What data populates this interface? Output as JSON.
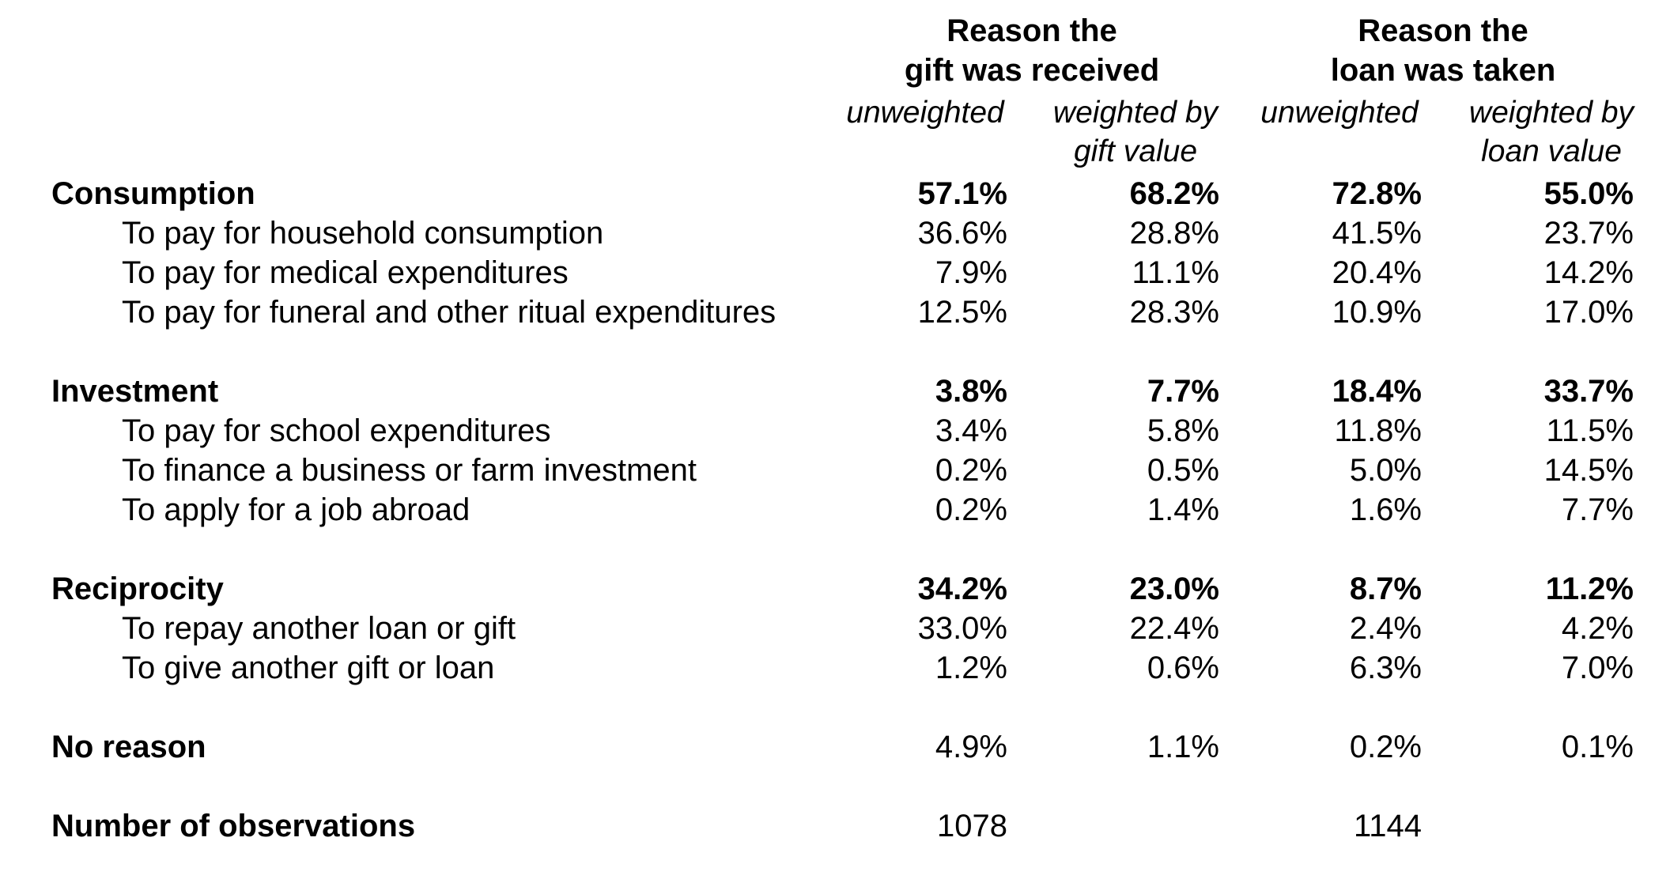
{
  "header": {
    "gift_group": [
      "Reason the",
      "gift was received"
    ],
    "loan_group": [
      "Reason the",
      "loan was taken"
    ],
    "sub_unweighted": "unweighted",
    "sub_weighted_gift": [
      "weighted by",
      "gift value"
    ],
    "sub_weighted_loan": [
      "weighted by",
      "loan value"
    ]
  },
  "rows": [
    {
      "label": "Consumption",
      "values": [
        "57.1%",
        "68.2%",
        "72.8%",
        "55.0%"
      ],
      "bold": true
    },
    {
      "label": "To pay for household consumption",
      "values": [
        "36.6%",
        "28.8%",
        "41.5%",
        "23.7%"
      ]
    },
    {
      "label": "To pay for medical expenditures",
      "values": [
        "7.9%",
        "11.1%",
        "20.4%",
        "14.2%"
      ]
    },
    {
      "label": "To pay for funeral and other ritual expenditures",
      "values": [
        "12.5%",
        "28.3%",
        "10.9%",
        "17.0%"
      ]
    },
    {
      "label": "Investment",
      "values": [
        "3.8%",
        "7.7%",
        "18.4%",
        "33.7%"
      ],
      "bold": true
    },
    {
      "label": "To pay for school expenditures",
      "values": [
        "3.4%",
        "5.8%",
        "11.8%",
        "11.5%"
      ]
    },
    {
      "label": "To finance a business or farm investment",
      "values": [
        "0.2%",
        "0.5%",
        "5.0%",
        "14.5%"
      ]
    },
    {
      "label": "To apply for a job abroad",
      "values": [
        "0.2%",
        "1.4%",
        "1.6%",
        "7.7%"
      ]
    },
    {
      "label": "Reciprocity",
      "values": [
        "34.2%",
        "23.0%",
        "8.7%",
        "11.2%"
      ],
      "bold": true
    },
    {
      "label": "To repay another loan or gift",
      "values": [
        "33.0%",
        "22.4%",
        "2.4%",
        "4.2%"
      ]
    },
    {
      "label": "To give another gift or loan",
      "values": [
        "1.2%",
        "0.6%",
        "6.3%",
        "7.0%"
      ]
    },
    {
      "label": "No reason",
      "values": [
        "4.9%",
        "1.1%",
        "0.2%",
        "0.1%"
      ],
      "bold_label": true
    },
    {
      "label": "Number of observations",
      "values": [
        "1078",
        "",
        "1144",
        ""
      ],
      "bold_label": true
    }
  ]
}
